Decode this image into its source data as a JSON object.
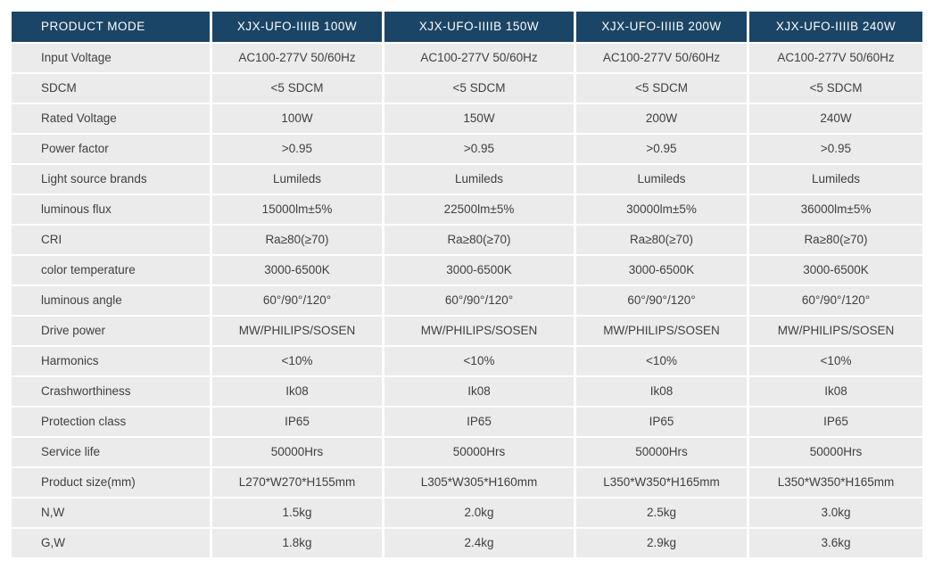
{
  "table": {
    "colors": {
      "header_bg": "#1b4566",
      "header_text": "#ffffff",
      "row_bg": "#ebebeb",
      "body_text": "#404040",
      "separator": "#ffffff"
    },
    "header": {
      "label": "PRODUCT MODE",
      "columns": [
        "XJX-UFO-IIIIB 100W",
        "XJX-UFO-IIIIB 150W",
        "XJX-UFO-IIIIB 200W",
        "XJX-UFO-IIIIB 240W"
      ]
    },
    "rows": [
      {
        "label": "Input Voltage",
        "values": [
          "AC100-277V 50/60Hz",
          "AC100-277V 50/60Hz",
          "AC100-277V 50/60Hz",
          "AC100-277V 50/60Hz"
        ]
      },
      {
        "label": "SDCM",
        "values": [
          "<5 SDCM",
          "<5 SDCM",
          "<5 SDCM",
          "<5 SDCM"
        ]
      },
      {
        "label": "Rated Voltage",
        "values": [
          "100W",
          "150W",
          "200W",
          "240W"
        ]
      },
      {
        "label": "Power factor",
        "values": [
          ">0.95",
          ">0.95",
          ">0.95",
          ">0.95"
        ]
      },
      {
        "label": "Light source brands",
        "values": [
          "Lumileds",
          "Lumileds",
          "Lumileds",
          "Lumileds"
        ]
      },
      {
        "label": "luminous flux",
        "values": [
          "15000lm±5%",
          "22500lm±5%",
          "30000lm±5%",
          "36000lm±5%"
        ]
      },
      {
        "label": "CRI",
        "values": [
          "Ra≥80(≥70)",
          "Ra≥80(≥70)",
          "Ra≥80(≥70)",
          "Ra≥80(≥70)"
        ]
      },
      {
        "label": "color temperature",
        "values": [
          "3000-6500K",
          "3000-6500K",
          "3000-6500K",
          "3000-6500K"
        ]
      },
      {
        "label": "luminous angle",
        "values": [
          "60°/90°/120°",
          "60°/90°/120°",
          "60°/90°/120°",
          "60°/90°/120°"
        ]
      },
      {
        "label": "Drive power",
        "values": [
          "MW/PHILIPS/SOSEN",
          "MW/PHILIPS/SOSEN",
          "MW/PHILIPS/SOSEN",
          "MW/PHILIPS/SOSEN"
        ]
      },
      {
        "label": "Harmonics",
        "values": [
          "<10%",
          "<10%",
          "<10%",
          "<10%"
        ]
      },
      {
        "label": "Crashworthiness",
        "values": [
          "Ik08",
          "Ik08",
          "Ik08",
          "Ik08"
        ]
      },
      {
        "label": "Protection class",
        "values": [
          "IP65",
          "IP65",
          "IP65",
          "IP65"
        ]
      },
      {
        "label": "Service life",
        "values": [
          "50000Hrs",
          "50000Hrs",
          "50000Hrs",
          "50000Hrs"
        ]
      },
      {
        "label": "Product size(mm)",
        "values": [
          "L270*W270*H155mm",
          "L305*W305*H160mm",
          "L350*W350*H165mm",
          "L350*W350*H165mm"
        ]
      },
      {
        "label": "N,W",
        "values": [
          "1.5kg",
          "2.0kg",
          "2.5kg",
          "3.0kg"
        ]
      },
      {
        "label": "G,W",
        "values": [
          "1.8kg",
          "2.4kg",
          "2.9kg",
          "3.6kg"
        ]
      }
    ]
  }
}
